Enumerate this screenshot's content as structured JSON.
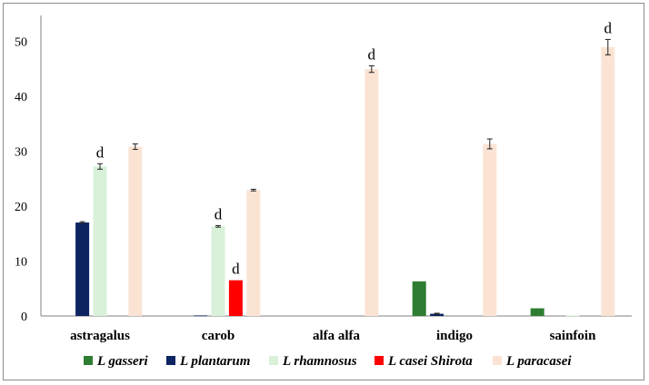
{
  "chart_data": {
    "type": "bar",
    "categories": [
      "astragalus",
      "carob",
      "alfa alfa",
      "indigo",
      "sainfoin"
    ],
    "series": [
      {
        "name": "L gasseri",
        "color": "#2e7d32",
        "values": [
          0,
          0,
          0,
          6.3,
          1.4
        ],
        "errors": [
          0,
          0,
          0,
          0,
          0
        ],
        "labels": [
          "",
          "",
          "",
          "",
          ""
        ]
      },
      {
        "name": "L plantarum",
        "color": "#0d2463",
        "values": [
          17.0,
          0.1,
          0,
          0.4,
          0
        ],
        "errors": [
          0.15,
          0,
          0,
          0.1,
          0
        ],
        "labels": [
          "",
          "",
          "",
          "",
          ""
        ]
      },
      {
        "name": "L rhamnosus",
        "color": "#d9f0d9",
        "values": [
          27.2,
          16.3,
          0,
          0,
          0.1
        ],
        "errors": [
          0.5,
          0.15,
          0,
          0,
          0
        ],
        "labels": [
          "d",
          "d",
          "",
          "",
          ""
        ]
      },
      {
        "name": "L casei Shirota",
        "color": "#ff0000",
        "values": [
          0,
          6.5,
          0,
          0,
          0
        ],
        "errors": [
          0,
          0,
          0,
          0,
          0
        ],
        "labels": [
          "",
          "d",
          "",
          "",
          ""
        ]
      },
      {
        "name": "L paracasei",
        "color": "#fbe3d4",
        "values": [
          30.8,
          22.9,
          44.9,
          31.3,
          48.9
        ],
        "errors": [
          0.5,
          0.15,
          0.6,
          0.9,
          1.4
        ],
        "labels": [
          "",
          "",
          "d",
          "",
          "d"
        ]
      }
    ],
    "yticks": [
      0,
      10,
      20,
      30,
      40,
      50
    ],
    "ylim": [
      0,
      54
    ],
    "grid": false,
    "legend": "bottom",
    "title": "",
    "xlabel": "",
    "ylabel": ""
  }
}
